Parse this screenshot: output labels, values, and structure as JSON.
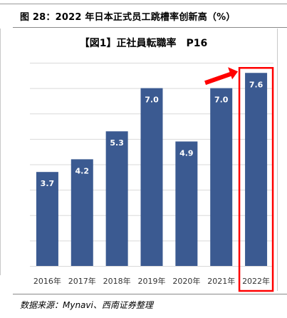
{
  "figure": {
    "title": "图 28：2022 年日本正式员工跳槽率创新高（%）",
    "source": "数据来源：Mynavi、西南证券整理"
  },
  "colors": {
    "bar": "#3b5a91",
    "grid": "#d9d9d9",
    "highlight": "#ff0000",
    "label": "#ffffff"
  },
  "chart_data": {
    "type": "bar",
    "title": "【図1】正社員転職率　P16",
    "categories": [
      "2016年",
      "2017年",
      "2018年",
      "2019年",
      "2020年",
      "2021年",
      "2022年"
    ],
    "values": [
      3.7,
      4.2,
      5.3,
      7.0,
      4.9,
      7.0,
      7.6
    ],
    "value_labels": [
      "3.7",
      "4.2",
      "5.3",
      "7.0",
      "4.9",
      "7.0",
      "7.6"
    ],
    "ylim": [
      0,
      8
    ],
    "grid": true,
    "legend": "none",
    "highlighted_category": "2022年",
    "annotation": "red arrow pointing to the highlighted 2022年 bar"
  }
}
